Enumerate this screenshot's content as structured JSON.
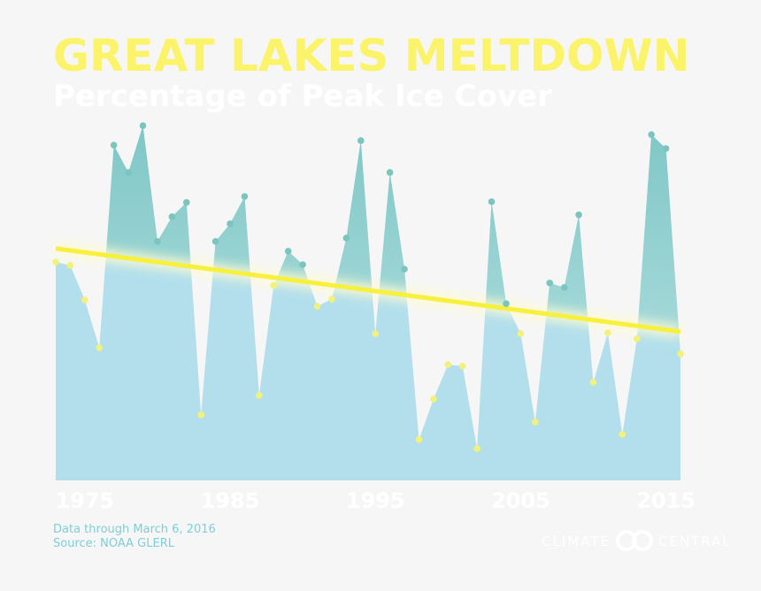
{
  "chart_data": {
    "type": "area",
    "title": "GREAT LAKES MELTDOWN",
    "subtitle": "Percentage of Peak Ice Cover",
    "x": [
      1973,
      1974,
      1975,
      1976,
      1977,
      1978,
      1979,
      1980,
      1981,
      1982,
      1983,
      1984,
      1985,
      1986,
      1987,
      1988,
      1989,
      1990,
      1991,
      1992,
      1993,
      1994,
      1995,
      1996,
      1997,
      1998,
      1999,
      2000,
      2001,
      2002,
      2003,
      2004,
      2005,
      2006,
      2007,
      2008,
      2009,
      2010,
      2011,
      2012,
      2013,
      2014,
      2015,
      2016
    ],
    "values": [
      58.3,
      57.4,
      48.2,
      35.4,
      89.5,
      82.2,
      94.7,
      63.8,
      70.4,
      74.2,
      17.5,
      63.8,
      68.5,
      75.8,
      22.7,
      52.0,
      61.2,
      57.6,
      46.5,
      48.4,
      64.7,
      90.7,
      39.2,
      82.2,
      56.4,
      10.9,
      21.7,
      30.9,
      30.5,
      8.5,
      74.4,
      47.2,
      39.2,
      15.6,
      52.7,
      51.5,
      70.9,
      26.2,
      39.4,
      12.3,
      37.8,
      92.3,
      88.6,
      33.8
    ],
    "color": "#b3dfec",
    "above_color": "#8fcfcf",
    "point_above_color": "#7cc5bf",
    "point_below_color": "#f2f27a",
    "trend": {
      "x": [
        1973,
        2016
      ],
      "values": [
        61.9,
        39.7
      ],
      "color": "#f7f03c"
    },
    "xlim": [
      1973,
      2016
    ],
    "ylim": [
      0,
      100
    ],
    "xticks": [
      1975,
      1985,
      1995,
      2005,
      2015
    ],
    "note": "Data through March 6, 2016",
    "source": "Source: NOAA GLERL",
    "logo": [
      "CLIMATE",
      "CENTRAL"
    ]
  }
}
